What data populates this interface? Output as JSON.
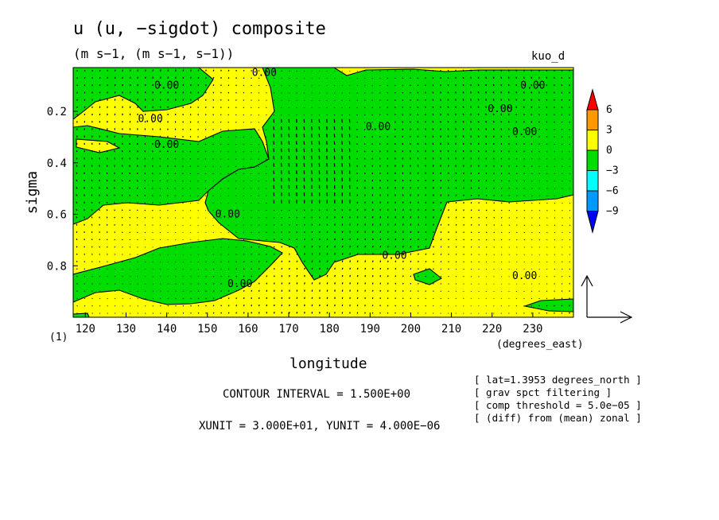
{
  "header": {
    "title": "u (u, −sigdot) composite",
    "subtitle": "(m s−1, (m s−1, s−1))",
    "run_label": "kuo_d",
    "panel_index": "(1)"
  },
  "notes": {
    "contour_interval": "CONTOUR INTERVAL = 1.500E+00",
    "vector_units": "XUNIT = 3.000E+01, YUNIT = 4.000E−06"
  },
  "meta": [
    "[ lat=1.3953 degrees_north ]",
    "[ grav spct filtering ]",
    "[ comp threshold = 5.0e−05 ]",
    "[ (diff) from (mean) zonal ]"
  ],
  "colors": {
    "positive_fill": "#ffff00",
    "negative_fill": "#00dd00",
    "vector": "#000000"
  },
  "chart_data": {
    "type": "heatmap",
    "xlabel": "longitude",
    "xunits": "(degrees_east)",
    "ylabel": "sigma",
    "xlim": [
      117,
      240
    ],
    "ylim": [
      1.0,
      0.03
    ],
    "x_ticks": [
      120,
      130,
      140,
      150,
      160,
      170,
      180,
      190,
      200,
      210,
      220,
      230
    ],
    "y_ticks": [
      0.2,
      0.4,
      0.6,
      0.8
    ],
    "contour_label": "0.00",
    "contour_label_positions": [
      {
        "x": 140,
        "y": 0.1
      },
      {
        "x": 164,
        "y": 0.05
      },
      {
        "x": 230,
        "y": 0.1
      },
      {
        "x": 136,
        "y": 0.23
      },
      {
        "x": 222,
        "y": 0.19
      },
      {
        "x": 192,
        "y": 0.26
      },
      {
        "x": 228,
        "y": 0.28
      },
      {
        "x": 140,
        "y": 0.33
      },
      {
        "x": 155,
        "y": 0.6
      },
      {
        "x": 196,
        "y": 0.76
      },
      {
        "x": 158,
        "y": 0.87
      },
      {
        "x": 228,
        "y": 0.84
      }
    ],
    "legend": {
      "levels": [
        6,
        3,
        0,
        -3,
        -6,
        -9
      ],
      "colors": [
        "#ff0000",
        "#ff9900",
        "#ffff00",
        "#00dd00",
        "#00ffff",
        "#0099ff",
        "#0000ff"
      ]
    },
    "grid": false
  }
}
